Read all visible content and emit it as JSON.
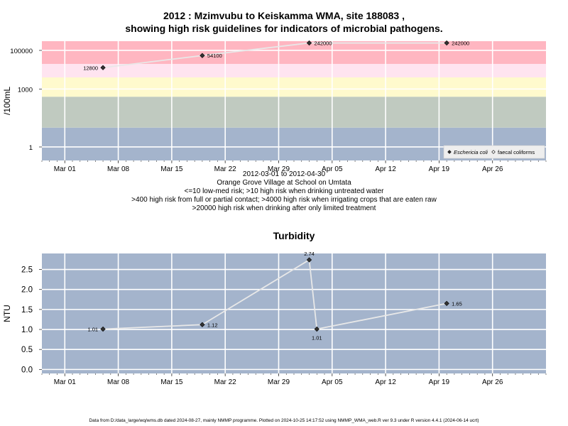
{
  "header": {
    "title_line1": "2012 : Mzimvubu to Keiskamma WMA, site 188083 ,",
    "title_line2": "showing high risk guidelines for indicators of microbial pathogens."
  },
  "colors": {
    "band_red": "#FFB6C1",
    "band_pink": "#FFE4F0",
    "band_yellow": "#FFFACD",
    "band_grey": "#C0CAC0",
    "band_blue": "#A4B4CC",
    "panel_bg": "#A4B4CC",
    "grid": "#FFFFFF",
    "line": "#E8E8E8",
    "point": "#333333"
  },
  "chart_data": [
    {
      "type": "line",
      "ylabel": "/100mL",
      "y_scale": "log",
      "ylim": [
        0.2,
        300000
      ],
      "yticks": [
        1,
        1000,
        100000
      ],
      "ytick_labels": [
        "1",
        "1000",
        "100000"
      ],
      "xlim": [
        "2012-02-27",
        "2012-05-03"
      ],
      "xticks": [
        "2012-03-01",
        "2012-03-08",
        "2012-03-15",
        "2012-03-22",
        "2012-03-29",
        "2012-04-05",
        "2012-04-12",
        "2012-04-19",
        "2012-04-26"
      ],
      "xtick_labels": [
        "Mar 01",
        "Mar 08",
        "Mar 15",
        "Mar 22",
        "Mar 29",
        "Apr 05",
        "Apr 12",
        "Apr 19",
        "Apr 26"
      ],
      "bands": [
        {
          "from": 0.2,
          "to": 10,
          "color": "#A4B4CC"
        },
        {
          "from": 10,
          "to": 400,
          "color": "#C0CAC0"
        },
        {
          "from": 400,
          "to": 4000,
          "color": "#FFFACD"
        },
        {
          "from": 4000,
          "to": 20000,
          "color": "#FFE4F0"
        },
        {
          "from": 20000,
          "to": 300000,
          "color": "#FFB6C1"
        }
      ],
      "series": [
        {
          "name": "Eschericia coli",
          "marker": "filled-diamond",
          "x": [
            "2012-03-06",
            "2012-03-19",
            "2012-04-02",
            "2012-04-20"
          ],
          "y": [
            12800,
            54100,
            242000,
            242000
          ],
          "labels": [
            "12800",
            "54100",
            "242000",
            "242000"
          ]
        }
      ],
      "legend": {
        "position": "bottom-right",
        "entries": [
          {
            "label": "Eschericia coli",
            "marker": "filled-diamond",
            "italic": true
          },
          {
            "label": "faecal coliforms",
            "marker": "open-diamond",
            "italic": false
          }
        ]
      },
      "annotations": [
        "2012-03-01 to 2012-04-30",
        "Orange Grove Village at School on Umtata",
        "<=10 low-med risk; >10 high risk when drinking untreated water",
        ">400 high risk from full or partial contact; >4000 high risk when irrigating crops that are eaten raw",
        ">20000 high risk when drinking after only limited treatment"
      ]
    },
    {
      "type": "line",
      "title": "Turbidity",
      "ylabel": "NTU",
      "ylim": [
        -0.1,
        2.9
      ],
      "yticks": [
        0,
        0.5,
        1,
        1.5,
        2,
        2.5
      ],
      "ytick_labels": [
        "0.0",
        "0.5",
        "1.0",
        "1.5",
        "2.0",
        "2.5"
      ],
      "xlim": [
        "2012-02-27",
        "2012-05-03"
      ],
      "xticks": [
        "2012-03-01",
        "2012-03-08",
        "2012-03-15",
        "2012-03-22",
        "2012-03-29",
        "2012-04-05",
        "2012-04-12",
        "2012-04-19",
        "2012-04-26"
      ],
      "xtick_labels": [
        "Mar 01",
        "Mar 08",
        "Mar 15",
        "Mar 22",
        "Mar 29",
        "Apr 05",
        "Apr 12",
        "Apr 19",
        "Apr 26"
      ],
      "series": [
        {
          "marker": "filled-diamond",
          "x": [
            "2012-03-06",
            "2012-03-19",
            "2012-04-02",
            "2012-04-03",
            "2012-04-20"
          ],
          "y": [
            1.01,
            1.12,
            2.74,
            1.01,
            1.65
          ],
          "labels": [
            "1.01",
            "1.12",
            "2.74",
            "1.01",
            "1.65"
          ],
          "label_side": [
            "left",
            "right",
            "above",
            "below",
            "right"
          ]
        }
      ]
    }
  ],
  "footer": {
    "text": "Data from D:/data_large/wq/wms.db dated 2024-08-27, mainly NMMP programme. Plotted on 2024-10-25 14:17:52 using NMMP_WMA_web.R ver 9.3 under R version 4.4.1 (2024-06-14 ucrt)"
  }
}
